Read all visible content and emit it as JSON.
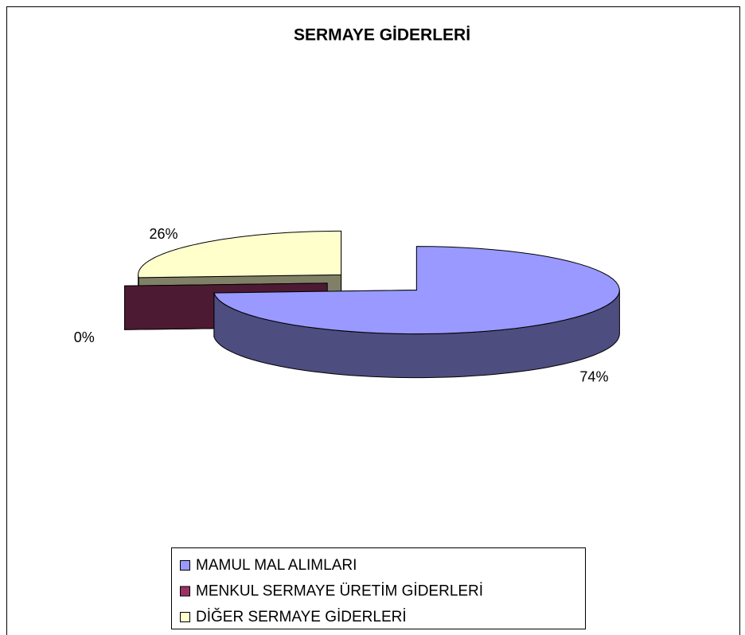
{
  "chart_data": {
    "type": "pie",
    "title": "SERMAYE GİDERLERİ",
    "categories": [
      "MAMUL MAL ALIMLARI",
      "MENKUL SERMAYE ÜRETİM GİDERLERİ",
      "DİĞER SERMAYE GİDERLERİ"
    ],
    "values": [
      74,
      0,
      26
    ],
    "value_labels": [
      "74%",
      "0%",
      "26%"
    ],
    "colors": [
      "#9999ff",
      "#993366",
      "#ffffcc"
    ],
    "legend": "bottom"
  }
}
